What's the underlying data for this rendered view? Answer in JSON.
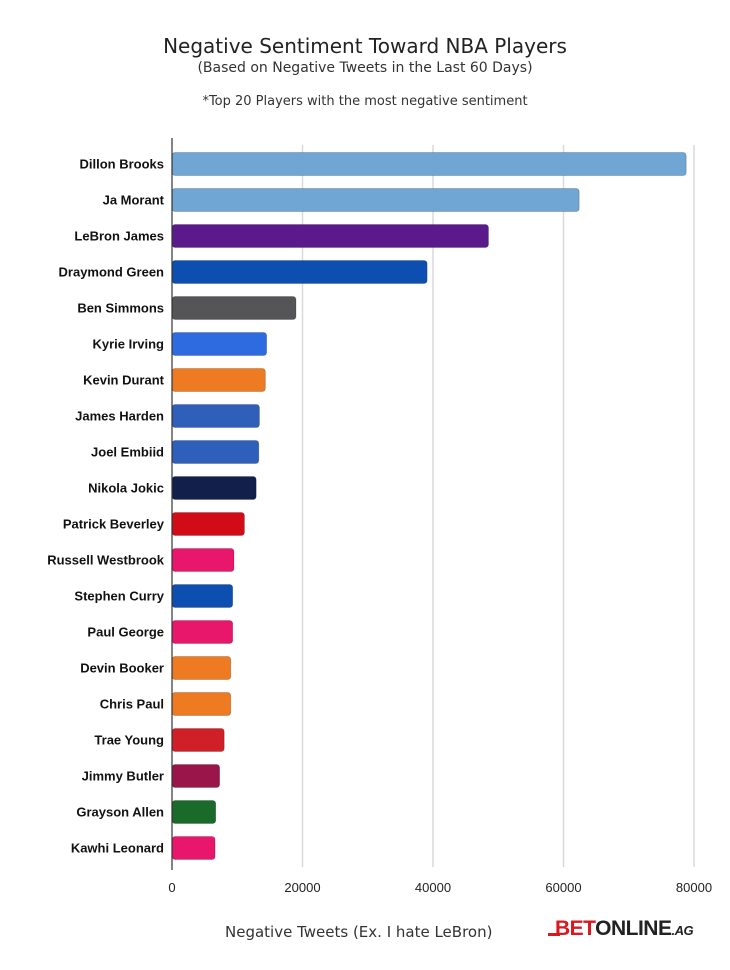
{
  "chart_data": {
    "type": "bar",
    "orientation": "horizontal",
    "title": "Negative Sentiment Toward NBA Players",
    "subtitle": "(Based on Negative Tweets in the Last 60 Days)",
    "note": "*Top 20 Players with the most negative sentiment",
    "xlabel": "Negative Tweets (Ex. I hate LeBron)",
    "ylabel": "",
    "xlim": [
      0,
      80000
    ],
    "xticks": [
      0,
      20000,
      40000,
      60000,
      80000
    ],
    "grid": "vertical",
    "legend": "none",
    "categories": [
      "Dillon Brooks",
      "Ja Morant",
      "LeBron James",
      "Draymond Green",
      "Ben Simmons",
      "Kyrie Irving",
      "Kevin Durant",
      "James Harden",
      "Joel Embiid",
      "Nikola Jokic",
      "Patrick Beverley",
      "Russell Westbrook",
      "Stephen Curry",
      "Paul George",
      "Devin Booker",
      "Chris Paul",
      "Trae Young",
      "Jimmy Butler",
      "Grayson Allen",
      "Kawhi Leonard"
    ],
    "values": [
      78800,
      62400,
      48500,
      39100,
      19000,
      14500,
      14300,
      13400,
      13300,
      12900,
      11100,
      9500,
      9300,
      9300,
      9000,
      9000,
      8000,
      7300,
      6700,
      6600
    ],
    "colors": [
      "#6fa6d3",
      "#6fa6d3",
      "#5b1a8b",
      "#0d4fb0",
      "#555558",
      "#2e6be0",
      "#ee7a22",
      "#2e5fba",
      "#2e5fba",
      "#131f4b",
      "#d10c17",
      "#e9176c",
      "#0d4fb0",
      "#e9176c",
      "#ee7a22",
      "#ee7a22",
      "#cf2027",
      "#9a1549",
      "#1a6b2a",
      "#e9176c"
    ]
  },
  "branding": {
    "logo_bet": "BET",
    "logo_online": "ONLINE",
    "logo_ag": ".AG"
  }
}
